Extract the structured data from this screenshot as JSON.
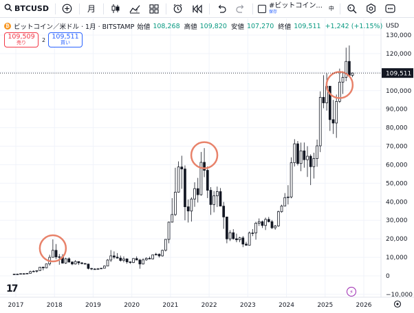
{
  "toolbar": {
    "symbol": "BTCUSD",
    "interval": "月",
    "layout_name": "#ビットコイン...",
    "layout_state": "保存",
    "misc_label": "中"
  },
  "legend": {
    "title": "ビットコイン／米ドル · 1月 · BITSTAMP",
    "open_label": "始値",
    "open": "108,268",
    "high_label": "高値",
    "high": "109,820",
    "low_label": "安値",
    "low": "107,270",
    "close_label": "終値",
    "close": "109,511",
    "change": "+1,242 (+1.15%)",
    "sell_price": "109,509",
    "sell_label": "売り",
    "spread": "2",
    "buy_price": "109,511",
    "buy_label": "買い"
  },
  "chart_data": {
    "type": "candlestick",
    "title": "ビットコイン／米ドル · 1月 · BITSTAMP",
    "currency_label": "USD",
    "x_ticks": [
      "2017",
      "2018",
      "2019",
      "2020",
      "2021",
      "2022",
      "2023",
      "2024",
      "2025",
      "2026"
    ],
    "y_ticks": [
      "130,000",
      "120,000",
      "110,000",
      "100,000",
      "90,000",
      "80,000",
      "70,000",
      "60,000",
      "50,000",
      "40,000",
      "30,000",
      "20,000",
      "10,000",
      "0",
      "−10,000"
    ],
    "ylim": [
      -13000,
      133000
    ],
    "last_price": "109,511",
    "highlight_markers": [
      "2017-12",
      "2021-11",
      "2025-05"
    ],
    "candles": [
      {
        "t": "2016-12",
        "o": 750,
        "h": 970,
        "l": 740,
        "c": 960
      },
      {
        "t": "2017-01",
        "o": 960,
        "h": 1150,
        "l": 750,
        "c": 970
      },
      {
        "t": "2017-02",
        "o": 970,
        "h": 1200,
        "l": 920,
        "c": 1190
      },
      {
        "t": "2017-03",
        "o": 1190,
        "h": 1350,
        "l": 890,
        "c": 1080
      },
      {
        "t": "2017-04",
        "o": 1080,
        "h": 1420,
        "l": 1060,
        "c": 1350
      },
      {
        "t": "2017-05",
        "o": 1350,
        "h": 2800,
        "l": 1340,
        "c": 2300
      },
      {
        "t": "2017-06",
        "o": 2300,
        "h": 3000,
        "l": 2100,
        "c": 2480
      },
      {
        "t": "2017-07",
        "o": 2480,
        "h": 2950,
        "l": 1800,
        "c": 2860
      },
      {
        "t": "2017-08",
        "o": 2860,
        "h": 4800,
        "l": 2680,
        "c": 4700
      },
      {
        "t": "2017-09",
        "o": 4700,
        "h": 5000,
        "l": 2950,
        "c": 4340
      },
      {
        "t": "2017-10",
        "o": 4340,
        "h": 6450,
        "l": 4100,
        "c": 6450
      },
      {
        "t": "2017-11",
        "o": 6450,
        "h": 11400,
        "l": 5500,
        "c": 10000
      },
      {
        "t": "2017-12",
        "o": 10000,
        "h": 19700,
        "l": 10000,
        "c": 13800
      },
      {
        "t": "2018-01",
        "o": 13800,
        "h": 17200,
        "l": 9000,
        "c": 10200
      },
      {
        "t": "2018-02",
        "o": 10200,
        "h": 11800,
        "l": 6000,
        "c": 10300
      },
      {
        "t": "2018-03",
        "o": 10300,
        "h": 11700,
        "l": 6600,
        "c": 6900
      },
      {
        "t": "2018-04",
        "o": 6900,
        "h": 9750,
        "l": 6500,
        "c": 9240
      },
      {
        "t": "2018-05",
        "o": 9240,
        "h": 9990,
        "l": 7050,
        "c": 7500
      },
      {
        "t": "2018-06",
        "o": 7500,
        "h": 7770,
        "l": 5750,
        "c": 6400
      },
      {
        "t": "2018-07",
        "o": 6400,
        "h": 8500,
        "l": 6100,
        "c": 7730
      },
      {
        "t": "2018-08",
        "o": 7730,
        "h": 7750,
        "l": 5880,
        "c": 7020
      },
      {
        "t": "2018-09",
        "o": 7020,
        "h": 7400,
        "l": 6200,
        "c": 6630
      },
      {
        "t": "2018-10",
        "o": 6630,
        "h": 7000,
        "l": 6200,
        "c": 6370
      },
      {
        "t": "2018-11",
        "o": 6370,
        "h": 6580,
        "l": 3500,
        "c": 4000
      },
      {
        "t": "2018-12",
        "o": 4000,
        "h": 4300,
        "l": 3150,
        "c": 3700
      },
      {
        "t": "2019-01",
        "o": 3700,
        "h": 4100,
        "l": 3400,
        "c": 3450
      },
      {
        "t": "2019-02",
        "o": 3450,
        "h": 4200,
        "l": 3380,
        "c": 3820
      },
      {
        "t": "2019-03",
        "o": 3820,
        "h": 4120,
        "l": 3700,
        "c": 4100
      },
      {
        "t": "2019-04",
        "o": 4100,
        "h": 5600,
        "l": 4050,
        "c": 5300
      },
      {
        "t": "2019-05",
        "o": 5300,
        "h": 9000,
        "l": 5300,
        "c": 8550
      },
      {
        "t": "2019-06",
        "o": 8550,
        "h": 13900,
        "l": 7500,
        "c": 10800
      },
      {
        "t": "2019-07",
        "o": 10800,
        "h": 13200,
        "l": 9100,
        "c": 10100
      },
      {
        "t": "2019-08",
        "o": 10100,
        "h": 12300,
        "l": 9350,
        "c": 9600
      },
      {
        "t": "2019-09",
        "o": 9600,
        "h": 10950,
        "l": 7700,
        "c": 8300
      },
      {
        "t": "2019-10",
        "o": 8300,
        "h": 10500,
        "l": 7300,
        "c": 9150
      },
      {
        "t": "2019-11",
        "o": 9150,
        "h": 9500,
        "l": 6550,
        "c": 7550
      },
      {
        "t": "2019-12",
        "o": 7550,
        "h": 7750,
        "l": 6430,
        "c": 7200
      },
      {
        "t": "2020-01",
        "o": 7200,
        "h": 9580,
        "l": 6850,
        "c": 9350
      },
      {
        "t": "2020-02",
        "o": 9350,
        "h": 10500,
        "l": 8550,
        "c": 8550
      },
      {
        "t": "2020-03",
        "o": 8550,
        "h": 9200,
        "l": 3850,
        "c": 6400
      },
      {
        "t": "2020-04",
        "o": 6400,
        "h": 9450,
        "l": 6150,
        "c": 8630
      },
      {
        "t": "2020-05",
        "o": 8630,
        "h": 10000,
        "l": 8150,
        "c": 9450
      },
      {
        "t": "2020-06",
        "o": 9450,
        "h": 10400,
        "l": 8950,
        "c": 9140
      },
      {
        "t": "2020-07",
        "o": 9140,
        "h": 11450,
        "l": 8900,
        "c": 11350
      },
      {
        "t": "2020-08",
        "o": 11350,
        "h": 12450,
        "l": 11000,
        "c": 11650
      },
      {
        "t": "2020-09",
        "o": 11650,
        "h": 12100,
        "l": 9900,
        "c": 10780
      },
      {
        "t": "2020-10",
        "o": 10780,
        "h": 14100,
        "l": 10400,
        "c": 13800
      },
      {
        "t": "2020-11",
        "o": 13800,
        "h": 19900,
        "l": 13200,
        "c": 19700
      },
      {
        "t": "2020-12",
        "o": 19700,
        "h": 29300,
        "l": 17600,
        "c": 29000
      },
      {
        "t": "2021-01",
        "o": 29000,
        "h": 41950,
        "l": 28800,
        "c": 33100
      },
      {
        "t": "2021-02",
        "o": 33100,
        "h": 58350,
        "l": 32300,
        "c": 45200
      },
      {
        "t": "2021-03",
        "o": 45200,
        "h": 61800,
        "l": 44950,
        "c": 58800
      },
      {
        "t": "2021-04",
        "o": 58800,
        "h": 64850,
        "l": 47000,
        "c": 57700
      },
      {
        "t": "2021-05",
        "o": 57700,
        "h": 59600,
        "l": 30000,
        "c": 37300
      },
      {
        "t": "2021-06",
        "o": 37300,
        "h": 41300,
        "l": 28800,
        "c": 35000
      },
      {
        "t": "2021-07",
        "o": 35000,
        "h": 42400,
        "l": 29300,
        "c": 41500
      },
      {
        "t": "2021-08",
        "o": 41500,
        "h": 50500,
        "l": 37300,
        "c": 47100
      },
      {
        "t": "2021-09",
        "o": 47100,
        "h": 52900,
        "l": 39600,
        "c": 43800
      },
      {
        "t": "2021-10",
        "o": 43800,
        "h": 66900,
        "l": 43300,
        "c": 61300
      },
      {
        "t": "2021-11",
        "o": 61300,
        "h": 69000,
        "l": 53300,
        "c": 57000
      },
      {
        "t": "2021-12",
        "o": 57000,
        "h": 59100,
        "l": 42000,
        "c": 46200
      },
      {
        "t": "2022-01",
        "o": 46200,
        "h": 47900,
        "l": 32900,
        "c": 38500
      },
      {
        "t": "2022-02",
        "o": 38500,
        "h": 45800,
        "l": 34300,
        "c": 43200
      },
      {
        "t": "2022-03",
        "o": 43200,
        "h": 48200,
        "l": 37200,
        "c": 45500
      },
      {
        "t": "2022-04",
        "o": 45500,
        "h": 47400,
        "l": 37700,
        "c": 37650
      },
      {
        "t": "2022-05",
        "o": 37650,
        "h": 39900,
        "l": 25400,
        "c": 31800
      },
      {
        "t": "2022-06",
        "o": 31800,
        "h": 31900,
        "l": 17600,
        "c": 19950
      },
      {
        "t": "2022-07",
        "o": 19950,
        "h": 24650,
        "l": 18800,
        "c": 23300
      },
      {
        "t": "2022-08",
        "o": 23300,
        "h": 25200,
        "l": 19600,
        "c": 20050
      },
      {
        "t": "2022-09",
        "o": 20050,
        "h": 22800,
        "l": 18150,
        "c": 19450
      },
      {
        "t": "2022-10",
        "o": 19450,
        "h": 21100,
        "l": 18150,
        "c": 20500
      },
      {
        "t": "2022-11",
        "o": 20500,
        "h": 21500,
        "l": 15500,
        "c": 17150
      },
      {
        "t": "2022-12",
        "o": 17150,
        "h": 18400,
        "l": 16300,
        "c": 16550
      },
      {
        "t": "2023-01",
        "o": 16550,
        "h": 23950,
        "l": 16500,
        "c": 23150
      },
      {
        "t": "2023-02",
        "o": 23150,
        "h": 25250,
        "l": 21450,
        "c": 23150
      },
      {
        "t": "2023-03",
        "o": 23150,
        "h": 29200,
        "l": 19550,
        "c": 28450
      },
      {
        "t": "2023-04",
        "o": 28450,
        "h": 31000,
        "l": 26950,
        "c": 29250
      },
      {
        "t": "2023-05",
        "o": 29250,
        "h": 29850,
        "l": 25850,
        "c": 27200
      },
      {
        "t": "2023-06",
        "o": 27200,
        "h": 31450,
        "l": 24750,
        "c": 30500
      },
      {
        "t": "2023-07",
        "o": 30500,
        "h": 31800,
        "l": 28850,
        "c": 29250
      },
      {
        "t": "2023-08",
        "o": 29250,
        "h": 30200,
        "l": 25300,
        "c": 25950
      },
      {
        "t": "2023-09",
        "o": 25950,
        "h": 27450,
        "l": 24900,
        "c": 26950
      },
      {
        "t": "2023-10",
        "o": 26950,
        "h": 35200,
        "l": 26550,
        "c": 34650
      },
      {
        "t": "2023-11",
        "o": 34650,
        "h": 38400,
        "l": 34100,
        "c": 37700
      },
      {
        "t": "2023-12",
        "o": 37700,
        "h": 44700,
        "l": 37600,
        "c": 42250
      },
      {
        "t": "2024-01",
        "o": 42250,
        "h": 48950,
        "l": 38550,
        "c": 42600
      },
      {
        "t": "2024-02",
        "o": 42600,
        "h": 64000,
        "l": 41900,
        "c": 61100
      },
      {
        "t": "2024-03",
        "o": 61100,
        "h": 73800,
        "l": 59050,
        "c": 71300
      },
      {
        "t": "2024-04",
        "o": 71300,
        "h": 72800,
        "l": 59600,
        "c": 60650
      },
      {
        "t": "2024-05",
        "o": 60650,
        "h": 71950,
        "l": 56500,
        "c": 67500
      },
      {
        "t": "2024-06",
        "o": 67500,
        "h": 72000,
        "l": 58400,
        "c": 62700
      },
      {
        "t": "2024-07",
        "o": 62700,
        "h": 70000,
        "l": 53400,
        "c": 64600
      },
      {
        "t": "2024-08",
        "o": 64600,
        "h": 65600,
        "l": 49000,
        "c": 58950
      },
      {
        "t": "2024-09",
        "o": 58950,
        "h": 66500,
        "l": 52550,
        "c": 63300
      },
      {
        "t": "2024-10",
        "o": 63300,
        "h": 73600,
        "l": 58900,
        "c": 70200
      },
      {
        "t": "2024-11",
        "o": 70200,
        "h": 99600,
        "l": 66800,
        "c": 96400
      },
      {
        "t": "2024-12",
        "o": 96400,
        "h": 108300,
        "l": 90500,
        "c": 93400
      },
      {
        "t": "2025-01",
        "o": 93400,
        "h": 109350,
        "l": 89200,
        "c": 102400
      },
      {
        "t": "2025-02",
        "o": 102400,
        "h": 102500,
        "l": 78250,
        "c": 84350
      },
      {
        "t": "2025-03",
        "o": 84350,
        "h": 95000,
        "l": 76600,
        "c": 82500
      },
      {
        "t": "2025-04",
        "o": 82500,
        "h": 97900,
        "l": 74500,
        "c": 94200
      },
      {
        "t": "2025-05",
        "o": 94200,
        "h": 111900,
        "l": 93400,
        "c": 104600
      },
      {
        "t": "2025-06",
        "o": 104600,
        "h": 110500,
        "l": 98200,
        "c": 107150
      },
      {
        "t": "2025-07",
        "o": 107150,
        "h": 123200,
        "l": 105100,
        "c": 115800
      },
      {
        "t": "2025-08",
        "o": 115800,
        "h": 124400,
        "l": 107270,
        "c": 108268
      },
      {
        "t": "2025-09",
        "o": 108268,
        "h": 109820,
        "l": 107270,
        "c": 109511
      }
    ]
  }
}
